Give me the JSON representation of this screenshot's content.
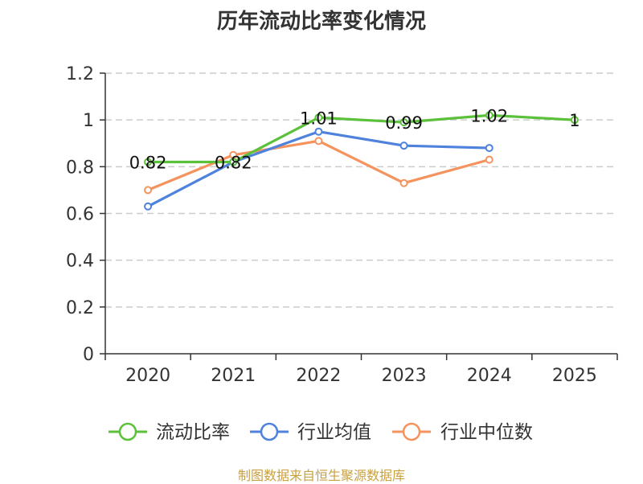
{
  "chart_data": {
    "type": "line",
    "title": "历年流动比率变化情况",
    "categories": [
      "2020",
      "2021",
      "2022",
      "2023",
      "2024",
      "2025"
    ],
    "ylim": [
      0,
      1.2
    ],
    "yticks": [
      "0",
      "0.2",
      "0.4",
      "0.6",
      "0.8",
      "1",
      "1.2"
    ],
    "grid": true,
    "legend_position": "bottom",
    "series": [
      {
        "name": "流动比率",
        "color": "#5cc13a",
        "values": [
          0.82,
          0.82,
          1.01,
          0.99,
          1.02,
          1.0
        ],
        "labels": [
          "0.82",
          "0.82",
          "1.01",
          "0.99",
          "1.02",
          "1"
        ]
      },
      {
        "name": "行业均值",
        "color": "#4f82dc",
        "values": [
          0.63,
          0.82,
          0.95,
          0.89,
          0.88,
          null
        ]
      },
      {
        "name": "行业中位数",
        "color": "#f5935e",
        "values": [
          0.7,
          0.85,
          0.91,
          0.73,
          0.83,
          null
        ]
      }
    ]
  },
  "source_note": "制图数据来自恒生聚源数据库"
}
